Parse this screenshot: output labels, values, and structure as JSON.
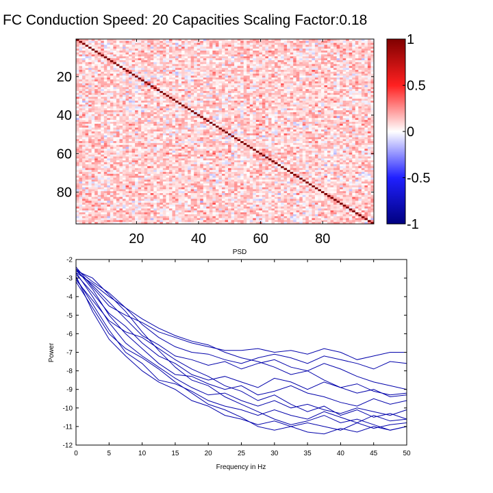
{
  "figure": {
    "title": "FC Conduction Speed: 20  Capacities Scaling Factor:0.18"
  },
  "chart_data": [
    {
      "type": "heatmap",
      "title": "FC Conduction Speed: 20  Capacities Scaling Factor:0.18",
      "description_values": "96x96 functional-connectivity correlation matrix; diagonal = 1, off-diagonal values mostly weakly positive (about 0 to 0.4) with scattered negative entries (down to about -0.4)",
      "matrix_size": 96,
      "diagonal_value": 1,
      "off_diagonal_mean": 0.1,
      "off_diagonal_range": [
        -0.45,
        0.45
      ],
      "xticks": [
        20,
        40,
        60,
        80
      ],
      "yticks": [
        20,
        40,
        60,
        80
      ],
      "xlabel": "PSD",
      "colorbar": {
        "ticks": [
          1,
          0.5,
          0,
          -0.5,
          -1
        ],
        "tick_labels": [
          "1",
          "0.5",
          "0",
          "-0.5",
          "-1"
        ],
        "clim": [
          -1,
          1
        ],
        "colormap": "blue-white-red",
        "colors": {
          "low": "#00007f",
          "mid": "#ffffff",
          "high": "#7f0000"
        }
      }
    },
    {
      "type": "line",
      "xlabel": "Frequency in Hz",
      "ylabel": "Power",
      "xlim": [
        0,
        50
      ],
      "ylim": [
        -12,
        -2
      ],
      "xticks": [
        0,
        5,
        10,
        15,
        20,
        25,
        30,
        35,
        40,
        45,
        50
      ],
      "yticks": [
        -2,
        -3,
        -4,
        -5,
        -6,
        -7,
        -8,
        -9,
        -10,
        -11,
        -12
      ],
      "line_color": "#0000aa",
      "series_count": 12,
      "x": [
        0,
        2.5,
        5,
        7.5,
        10,
        12.5,
        15,
        17.5,
        20,
        22.5,
        25,
        27.5,
        30,
        32.5,
        35,
        37.5,
        40,
        42.5,
        45,
        47.5,
        50
      ],
      "series": [
        {
          "values": [
            -2.4,
            -3.5,
            -4.5,
            -5.0,
            -5.4,
            -5.9,
            -6.2,
            -6.5,
            -6.7,
            -6.9,
            -6.9,
            -6.8,
            -7.0,
            -6.9,
            -7.1,
            -6.8,
            -7.0,
            -7.4,
            -7.2,
            -7.0,
            -7.0
          ]
        },
        {
          "values": [
            -2.5,
            -3.2,
            -3.8,
            -4.6,
            -5.5,
            -6.2,
            -6.7,
            -7.0,
            -7.1,
            -7.4,
            -7.6,
            -7.3,
            -7.1,
            -7.3,
            -7.6,
            -7.2,
            -7.4,
            -7.6,
            -7.9,
            -7.5,
            -7.6
          ]
        },
        {
          "values": [
            -2.6,
            -3.4,
            -4.3,
            -5.2,
            -6.1,
            -6.6,
            -7.2,
            -7.4,
            -7.7,
            -7.5,
            -7.9,
            -7.6,
            -7.4,
            -7.8,
            -8.0,
            -7.6,
            -7.9,
            -8.3,
            -8.6,
            -8.8,
            -9.0
          ]
        },
        {
          "values": [
            -2.8,
            -3.8,
            -4.9,
            -5.6,
            -6.5,
            -7.2,
            -7.6,
            -8.2,
            -8.5,
            -8.3,
            -8.6,
            -8.9,
            -8.4,
            -8.6,
            -9.0,
            -8.6,
            -8.9,
            -9.2,
            -9.0,
            -9.4,
            -9.3
          ]
        },
        {
          "values": [
            -2.5,
            -3.6,
            -5.0,
            -6.0,
            -6.8,
            -7.6,
            -8.2,
            -8.3,
            -8.7,
            -9.0,
            -8.8,
            -9.3,
            -9.1,
            -8.8,
            -9.2,
            -9.4,
            -9.7,
            -9.9,
            -9.5,
            -9.8,
            -9.6
          ]
        },
        {
          "values": [
            -2.7,
            -4.0,
            -5.4,
            -6.5,
            -7.2,
            -7.8,
            -8.4,
            -8.9,
            -9.3,
            -9.2,
            -9.6,
            -9.9,
            -9.6,
            -10.0,
            -9.8,
            -10.1,
            -10.3,
            -10.0,
            -10.2,
            -10.4,
            -10.1
          ]
        },
        {
          "values": [
            -3.0,
            -4.4,
            -5.8,
            -7.0,
            -7.6,
            -8.5,
            -8.7,
            -9.1,
            -9.6,
            -9.9,
            -10.1,
            -10.4,
            -10.1,
            -10.4,
            -10.6,
            -10.2,
            -10.5,
            -10.8,
            -10.4,
            -10.7,
            -10.6
          ]
        },
        {
          "values": [
            -2.9,
            -4.8,
            -6.3,
            -7.2,
            -8.0,
            -8.6,
            -9.0,
            -9.6,
            -9.9,
            -10.4,
            -10.6,
            -10.9,
            -10.7,
            -11.0,
            -10.8,
            -11.0,
            -11.2,
            -10.8,
            -11.1,
            -10.9,
            -10.8
          ]
        },
        {
          "values": [
            -3.2,
            -4.6,
            -6.0,
            -6.8,
            -7.3,
            -7.9,
            -8.6,
            -9.2,
            -9.8,
            -10.1,
            -10.5,
            -11.0,
            -11.2,
            -11.0,
            -11.3,
            -11.4,
            -11.1,
            -11.3,
            -11.0,
            -11.2,
            -11.0
          ]
        },
        {
          "values": [
            -3.1,
            -4.2,
            -5.3,
            -5.9,
            -6.2,
            -6.8,
            -7.4,
            -7.9,
            -8.3,
            -8.8,
            -9.1,
            -9.6,
            -9.3,
            -9.8,
            -10.2,
            -9.9,
            -10.4,
            -10.1,
            -10.5,
            -10.3,
            -10.6
          ]
        },
        {
          "values": [
            -2.6,
            -3.0,
            -3.9,
            -4.8,
            -5.9,
            -6.9,
            -7.8,
            -8.5,
            -8.8,
            -9.4,
            -9.8,
            -10.2,
            -10.6,
            -10.9,
            -10.7,
            -10.4,
            -10.8,
            -10.6,
            -10.9,
            -11.2,
            -11.0
          ]
        },
        {
          "values": [
            -2.7,
            -3.3,
            -4.0,
            -4.6,
            -5.2,
            -5.7,
            -6.1,
            -6.4,
            -6.6,
            -7.0,
            -7.3,
            -7.5,
            -7.8,
            -8.2,
            -8.0,
            -8.5,
            -8.9,
            -8.7,
            -9.1,
            -9.3,
            -9.2
          ]
        }
      ]
    }
  ]
}
